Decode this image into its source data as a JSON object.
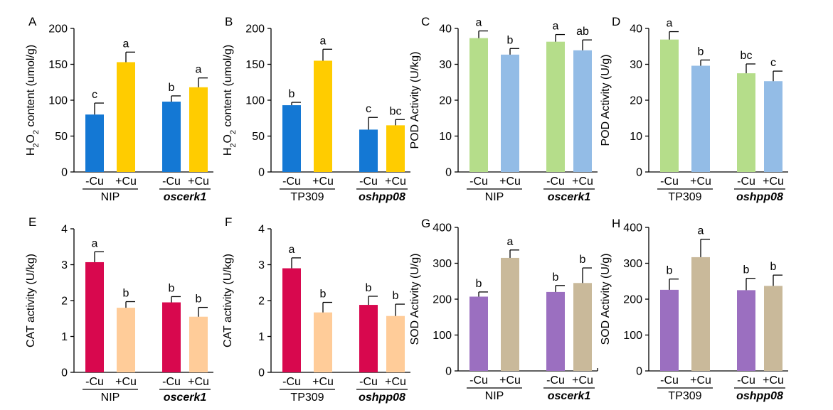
{
  "figure": {
    "tick_neg": "-Cu",
    "tick_pos": "+Cu"
  },
  "chart_data": [
    {
      "panel": "A",
      "type": "bar",
      "ylabel_parts": [
        "H",
        "2",
        "O",
        "2",
        " content (umol/g)"
      ],
      "ylim": [
        0,
        200
      ],
      "yticks": [
        0,
        50,
        100,
        150,
        200
      ],
      "groups": [
        "NIP",
        "oscerk1"
      ],
      "groups_italic": [
        false,
        true
      ],
      "categories": [
        "-Cu",
        "+Cu",
        "-Cu",
        "+Cu"
      ],
      "values": [
        80,
        153,
        98,
        118
      ],
      "errors": [
        16,
        14,
        8,
        13
      ],
      "letters": [
        "c",
        "a",
        "b",
        "a"
      ],
      "colors": [
        "#1478D4",
        "#FFCC00",
        "#1478D4",
        "#FFCC00"
      ]
    },
    {
      "panel": "B",
      "type": "bar",
      "ylabel_parts": [
        "H",
        "2",
        "O",
        "2",
        " content (umol/g)"
      ],
      "ylim": [
        0,
        200
      ],
      "yticks": [
        0,
        50,
        100,
        150,
        200
      ],
      "groups": [
        "TP309",
        "oshpp08"
      ],
      "groups_italic": [
        false,
        true
      ],
      "categories": [
        "-Cu",
        "+Cu",
        "-Cu",
        "+Cu"
      ],
      "values": [
        93,
        155,
        59,
        65
      ],
      "errors": [
        4,
        16,
        17,
        8
      ],
      "letters": [
        "b",
        "a",
        "c",
        "bc"
      ],
      "colors": [
        "#1478D4",
        "#FFCC00",
        "#1478D4",
        "#FFCC00"
      ]
    },
    {
      "panel": "C",
      "type": "bar",
      "ylabel_parts": [
        "POD Activity (U/kg)"
      ],
      "ylim": [
        0,
        40
      ],
      "yticks": [
        0,
        10,
        20,
        30,
        40
      ],
      "groups": [
        "NIP",
        "oscerk1"
      ],
      "groups_italic": [
        false,
        true
      ],
      "categories": [
        "-Cu",
        "+Cu",
        "-Cu",
        "+Cu"
      ],
      "values": [
        37.3,
        32.7,
        36.3,
        33.9
      ],
      "errors": [
        2.0,
        1.7,
        2.0,
        2.9
      ],
      "letters": [
        "a",
        "b",
        "a",
        "ab"
      ],
      "colors": [
        "#B5DD8A",
        "#93BCE6",
        "#B5DD8A",
        "#93BCE6"
      ]
    },
    {
      "panel": "D",
      "type": "bar",
      "ylabel_parts": [
        "POD Activity (U/g)"
      ],
      "ylim": [
        0,
        40
      ],
      "yticks": [
        0,
        10,
        20,
        30,
        40
      ],
      "groups": [
        "TP309",
        "oshpp08"
      ],
      "groups_italic": [
        false,
        true
      ],
      "categories": [
        "-Cu",
        "+Cu",
        "-Cu",
        "+Cu"
      ],
      "values": [
        36.9,
        29.6,
        27.5,
        25.3
      ],
      "errors": [
        2.2,
        1.6,
        2.6,
        2.8
      ],
      "letters": [
        "a",
        "b",
        "bc",
        "c"
      ],
      "colors": [
        "#B5DD8A",
        "#93BCE6",
        "#B5DD8A",
        "#93BCE6"
      ]
    },
    {
      "panel": "E",
      "type": "bar",
      "ylabel_parts": [
        "CAT activity (U/kg)"
      ],
      "ylim": [
        0,
        4
      ],
      "yticks": [
        0,
        1,
        2,
        3,
        4
      ],
      "groups": [
        "NIP",
        "oscerk1"
      ],
      "groups_italic": [
        false,
        true
      ],
      "categories": [
        "-Cu",
        "+Cu",
        "-Cu",
        "+Cu"
      ],
      "values": [
        3.07,
        1.8,
        1.95,
        1.55
      ],
      "errors": [
        0.29,
        0.17,
        0.16,
        0.26
      ],
      "letters": [
        "a",
        "b",
        "b",
        "b"
      ],
      "colors": [
        "#D8084E",
        "#FFCC99",
        "#D8084E",
        "#FFCC99"
      ]
    },
    {
      "panel": "F",
      "type": "bar",
      "ylabel_parts": [
        "CAT activity (U/kg)"
      ],
      "ylim": [
        0,
        4
      ],
      "yticks": [
        0,
        1,
        2,
        3,
        4
      ],
      "groups": [
        "TP309",
        "oshpp08"
      ],
      "groups_italic": [
        false,
        true
      ],
      "categories": [
        "-Cu",
        "+Cu",
        "-Cu",
        "+Cu"
      ],
      "values": [
        2.9,
        1.67,
        1.88,
        1.57
      ],
      "errors": [
        0.29,
        0.28,
        0.24,
        0.33
      ],
      "letters": [
        "a",
        "b",
        "b",
        "b"
      ],
      "colors": [
        "#D8084E",
        "#FFCC99",
        "#D8084E",
        "#FFCC99"
      ]
    },
    {
      "panel": "G",
      "type": "bar",
      "ylabel_parts": [
        "SOD Activity (U/g)"
      ],
      "ylim": [
        0,
        400
      ],
      "yticks": [
        0,
        100,
        200,
        300,
        400
      ],
      "groups": [
        "NIP",
        "oscerk1"
      ],
      "groups_italic": [
        false,
        true
      ],
      "categories": [
        "-Cu",
        "+Cu",
        "-Cu",
        "+Cu"
      ],
      "values": [
        207,
        315,
        220,
        245
      ],
      "errors": [
        13,
        22,
        18,
        42
      ],
      "letters": [
        "b",
        "a",
        "b",
        "b"
      ],
      "colors": [
        "#9B6FC0",
        "#C9B99A",
        "#9B6FC0",
        "#C9B99A"
      ]
    },
    {
      "panel": "H",
      "type": "bar",
      "ylabel_parts": [
        "SOD Activity (U/g)"
      ],
      "ylim": [
        0,
        400
      ],
      "yticks": [
        0,
        100,
        200,
        300,
        400
      ],
      "groups": [
        "TP309",
        "oshpp08"
      ],
      "groups_italic": [
        false,
        true
      ],
      "categories": [
        "-Cu",
        "+Cu",
        "-Cu",
        "+Cu"
      ],
      "values": [
        226,
        317,
        225,
        237
      ],
      "errors": [
        30,
        50,
        33,
        30
      ],
      "letters": [
        "b",
        "a",
        "b",
        "b"
      ],
      "colors": [
        "#9B6FC0",
        "#C9B99A",
        "#9B6FC0",
        "#C9B99A"
      ]
    }
  ]
}
